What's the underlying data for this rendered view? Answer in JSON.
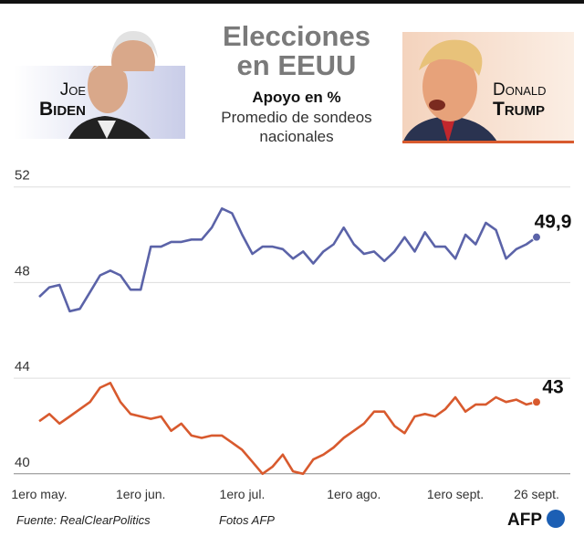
{
  "header": {
    "title_lines": [
      "Elecciones",
      "en EEUU"
    ],
    "subtitle": "Apoyo en %",
    "description": "Promedio de sondeos nacionales"
  },
  "candidates": [
    {
      "first": "Joe",
      "last": "Biden"
    },
    {
      "first": "Donald",
      "last": "Trump"
    }
  ],
  "chart_data": {
    "type": "line",
    "categories": [
      "1ero may.",
      null,
      null,
      null,
      null,
      null,
      null,
      null,
      null,
      null,
      "1ero jun.",
      null,
      null,
      null,
      null,
      null,
      null,
      null,
      null,
      null,
      "1ero jul.",
      null,
      null,
      null,
      null,
      null,
      null,
      null,
      null,
      null,
      null,
      "1ero ago.",
      null,
      null,
      null,
      null,
      null,
      null,
      null,
      null,
      null,
      "1ero sept.",
      null,
      null,
      null,
      null,
      null,
      null,
      null,
      "26 sept."
    ],
    "series": [
      {
        "color": "#5b63a8",
        "values": [
          47.4,
          47.8,
          47.9,
          46.8,
          46.9,
          47.6,
          48.3,
          48.5,
          48.3,
          47.7,
          47.7,
          49.5,
          49.5,
          49.7,
          49.7,
          49.8,
          49.8,
          50.3,
          51.1,
          50.9,
          50.0,
          49.2,
          49.5,
          49.5,
          49.4,
          49.0,
          49.3,
          48.8,
          49.3,
          49.6,
          50.3,
          49.6,
          49.2,
          49.3,
          48.9,
          49.3,
          49.9,
          49.3,
          50.1,
          49.5,
          49.5,
          49.0,
          50.0,
          49.6,
          50.5,
          50.2,
          49.0,
          49.4,
          49.6,
          49.9
        ],
        "value_labels": [
          null,
          null,
          null,
          null,
          null,
          null,
          null,
          null,
          null,
          null,
          null,
          null,
          null,
          null,
          null,
          null,
          null,
          null,
          null,
          null,
          null,
          null,
          null,
          null,
          null,
          null,
          null,
          null,
          null,
          null,
          null,
          null,
          null,
          null,
          null,
          null,
          null,
          null,
          null,
          null,
          null,
          null,
          null,
          null,
          null,
          null,
          null,
          null,
          null,
          "49,9"
        ]
      },
      {
        "color": "#d85a2e",
        "values": [
          42.2,
          42.5,
          42.1,
          42.4,
          42.7,
          43.0,
          43.6,
          43.8,
          43.0,
          42.5,
          42.4,
          42.3,
          42.4,
          41.8,
          42.1,
          41.6,
          41.5,
          41.6,
          41.6,
          41.3,
          41.0,
          40.5,
          40.0,
          40.3,
          40.8,
          40.1,
          40.0,
          40.6,
          40.8,
          41.1,
          41.5,
          41.8,
          42.1,
          42.6,
          42.6,
          42.0,
          41.7,
          42.4,
          42.5,
          42.4,
          42.7,
          43.2,
          42.6,
          42.9,
          42.9,
          43.2,
          43.0,
          43.1,
          42.9,
          43.0
        ],
        "value_labels": [
          null,
          null,
          null,
          null,
          null,
          null,
          null,
          null,
          null,
          null,
          null,
          null,
          null,
          null,
          null,
          null,
          null,
          null,
          null,
          null,
          null,
          null,
          null,
          null,
          null,
          null,
          null,
          null,
          null,
          null,
          null,
          null,
          null,
          null,
          null,
          null,
          null,
          null,
          null,
          null,
          null,
          null,
          null,
          null,
          null,
          null,
          null,
          null,
          null,
          "43"
        ]
      }
    ],
    "ylim": [
      39.8,
      52.6
    ],
    "yticks": [
      40,
      44,
      48,
      52
    ],
    "grid": true
  },
  "footer": {
    "source": "Fuente: RealClearPolitics",
    "photos": "Fotos AFP",
    "logo": "AFP"
  }
}
